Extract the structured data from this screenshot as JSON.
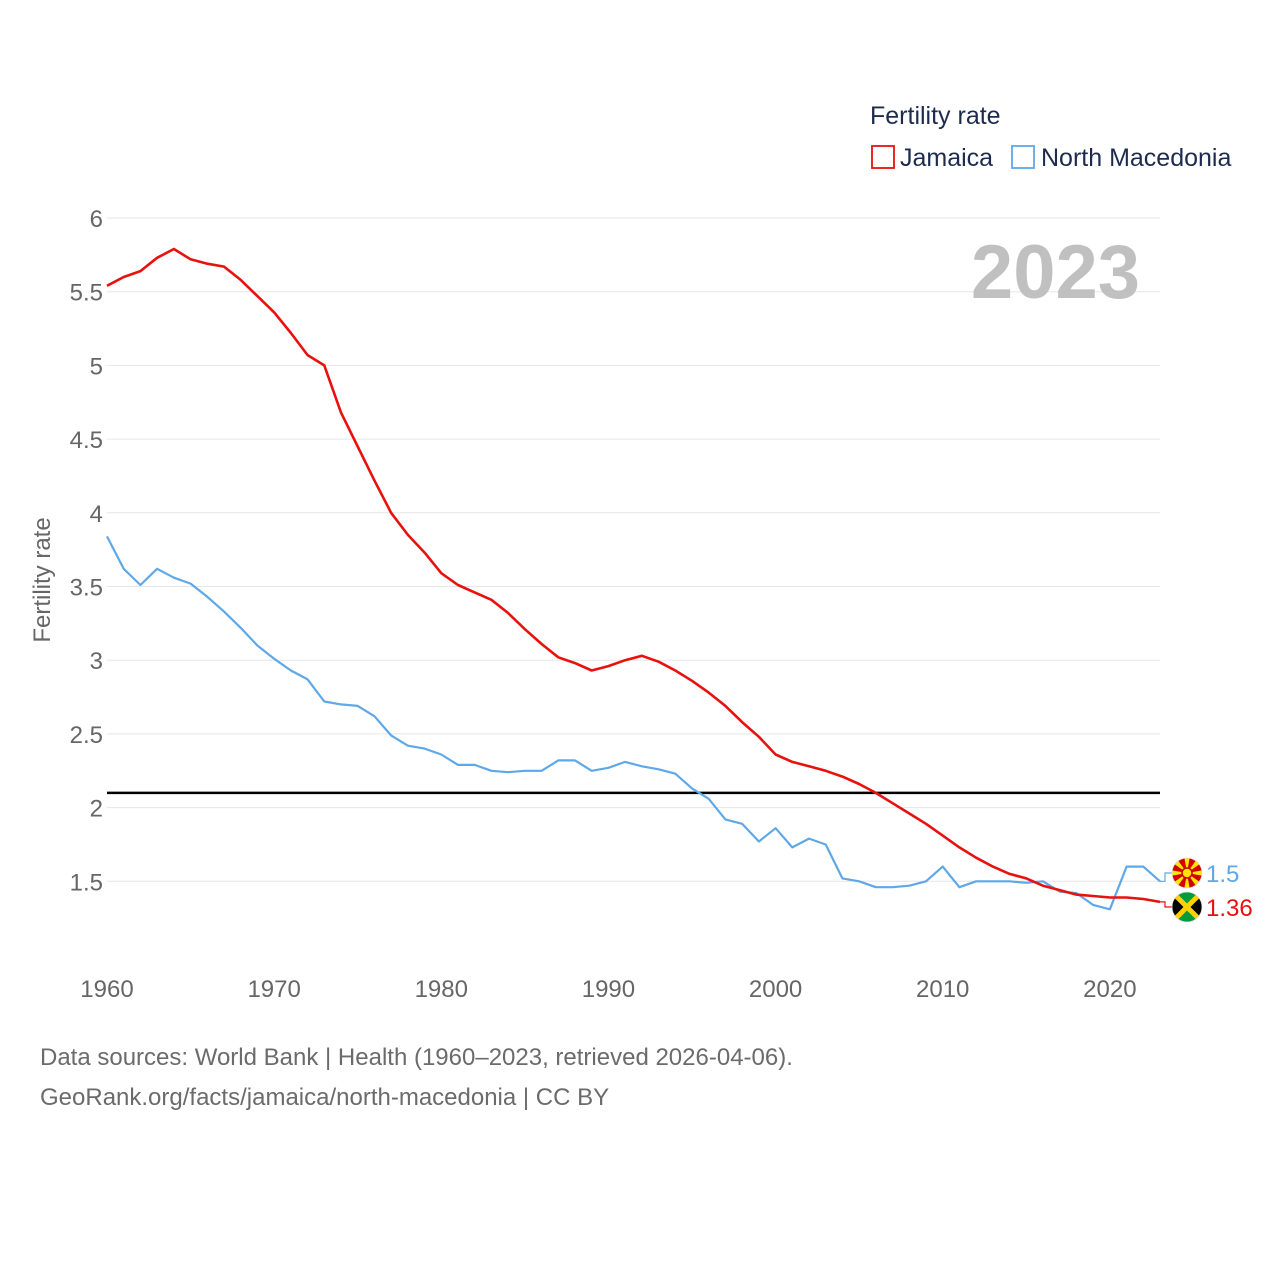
{
  "chart_data": {
    "type": "line",
    "title": "",
    "legend_title": "Fertility rate",
    "legend_position": "top-right",
    "year_label": "2023",
    "xlabel": "",
    "ylabel": "Fertility rate",
    "xlim": [
      1960,
      2023
    ],
    "ylim": [
      1.0,
      6.0
    ],
    "xticks": [
      "1960",
      "1970",
      "1980",
      "1990",
      "2000",
      "2010",
      "2020"
    ],
    "yticks": [
      "1.5",
      "2",
      "2.5",
      "3",
      "3.5",
      "4",
      "4.5",
      "5",
      "5.5",
      "6"
    ],
    "reference_line": 2.1,
    "x": [
      1960,
      1961,
      1962,
      1963,
      1964,
      1965,
      1966,
      1967,
      1968,
      1969,
      1970,
      1971,
      1972,
      1973,
      1974,
      1975,
      1976,
      1977,
      1978,
      1979,
      1980,
      1981,
      1982,
      1983,
      1984,
      1985,
      1986,
      1987,
      1988,
      1989,
      1990,
      1991,
      1992,
      1993,
      1994,
      1995,
      1996,
      1997,
      1998,
      1999,
      2000,
      2001,
      2002,
      2003,
      2004,
      2005,
      2006,
      2007,
      2008,
      2009,
      2010,
      2011,
      2012,
      2013,
      2014,
      2015,
      2016,
      2017,
      2018,
      2019,
      2020,
      2021,
      2022,
      2023
    ],
    "series": [
      {
        "name": "Jamaica",
        "color": "#e8110e",
        "end_label": "1.36",
        "flag": "jamaica-flag-icon",
        "values": [
          5.54,
          5.6,
          5.64,
          5.73,
          5.79,
          5.72,
          5.69,
          5.67,
          5.58,
          5.47,
          5.36,
          5.22,
          5.07,
          5.0,
          4.68,
          4.45,
          4.22,
          4.0,
          3.85,
          3.73,
          3.59,
          3.51,
          3.46,
          3.41,
          3.32,
          3.21,
          3.11,
          3.02,
          2.98,
          2.93,
          2.96,
          3.0,
          3.03,
          2.99,
          2.93,
          2.86,
          2.78,
          2.69,
          2.58,
          2.48,
          2.36,
          2.31,
          2.28,
          2.25,
          2.21,
          2.16,
          2.1,
          2.03,
          1.96,
          1.89,
          1.81,
          1.73,
          1.66,
          1.6,
          1.55,
          1.52,
          1.47,
          1.44,
          1.41,
          1.4,
          1.39,
          1.39,
          1.38,
          1.36
        ]
      },
      {
        "name": "North Macedonia",
        "color": "#5fa8e8",
        "end_label": "1.5",
        "flag": "north-macedonia-flag-icon",
        "values": [
          3.84,
          3.62,
          3.51,
          3.62,
          3.56,
          3.52,
          3.43,
          3.33,
          3.22,
          3.1,
          3.01,
          2.93,
          2.87,
          2.72,
          2.7,
          2.69,
          2.62,
          2.49,
          2.42,
          2.4,
          2.36,
          2.29,
          2.29,
          2.25,
          2.24,
          2.25,
          2.25,
          2.32,
          2.32,
          2.25,
          2.27,
          2.31,
          2.28,
          2.26,
          2.23,
          2.13,
          2.06,
          1.92,
          1.89,
          1.77,
          1.86,
          1.73,
          1.79,
          1.75,
          1.52,
          1.5,
          1.46,
          1.46,
          1.47,
          1.5,
          1.6,
          1.46,
          1.5,
          1.5,
          1.5,
          1.49,
          1.5,
          1.43,
          1.42,
          1.34,
          1.31,
          1.6,
          1.6,
          1.5
        ]
      }
    ]
  },
  "footer": {
    "line1": "Data sources: World Bank | Health (1960–2023, retrieved 2026-04-06).",
    "line2": "GeoRank.org/facts/jamaica/north-macedonia | CC BY"
  }
}
